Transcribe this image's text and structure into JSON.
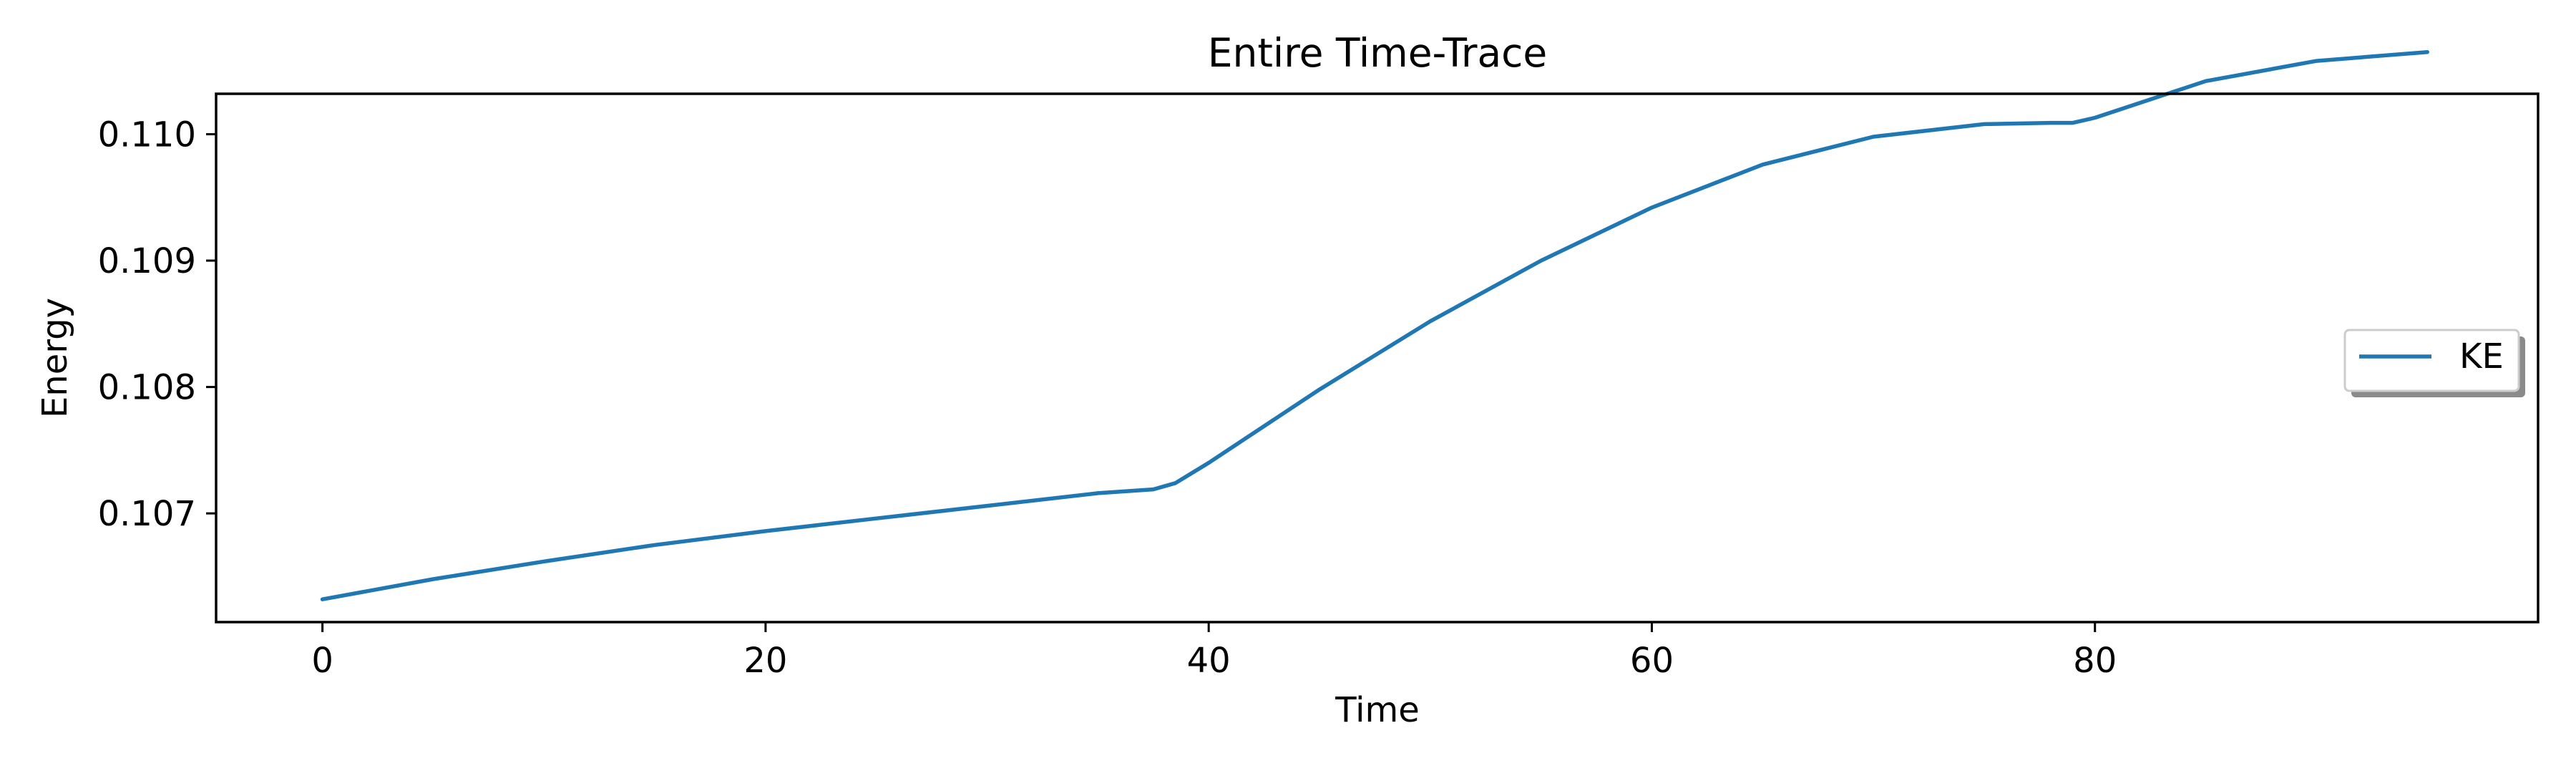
{
  "chart_data": {
    "type": "line",
    "title": "Entire Time-Trace",
    "xlabel": "Time",
    "ylabel": "Energy",
    "xlim": [
      -4.8,
      100
    ],
    "ylim": [
      0.10614,
      0.11032
    ],
    "xticks": [
      0,
      20,
      40,
      60,
      80
    ],
    "xtick_labels": [
      "0",
      "20",
      "40",
      "60",
      "80"
    ],
    "yticks": [
      0.107,
      0.108,
      0.109,
      0.11
    ],
    "ytick_labels": [
      "0.107",
      "0.108",
      "0.109",
      "0.110"
    ],
    "grid": false,
    "legend": {
      "position": "center-right",
      "entries": [
        "KE"
      ]
    },
    "series": [
      {
        "name": "KE",
        "color": "#1f77b4",
        "x": [
          0,
          5,
          10,
          15,
          20,
          25,
          30,
          35,
          37.5,
          38.5,
          40,
          45,
          50,
          55,
          60,
          65,
          70,
          75,
          78,
          79,
          80,
          85,
          90,
          95
        ],
        "y": [
          0.10632,
          0.10648,
          0.10662,
          0.10675,
          0.10686,
          0.10696,
          0.10706,
          0.10716,
          0.10719,
          0.10724,
          0.1074,
          0.10798,
          0.10852,
          0.109,
          0.10942,
          0.10976,
          0.10998,
          0.11008,
          0.11009,
          0.11009,
          0.11013,
          0.11042,
          0.11058,
          0.11065
        ]
      }
    ]
  }
}
